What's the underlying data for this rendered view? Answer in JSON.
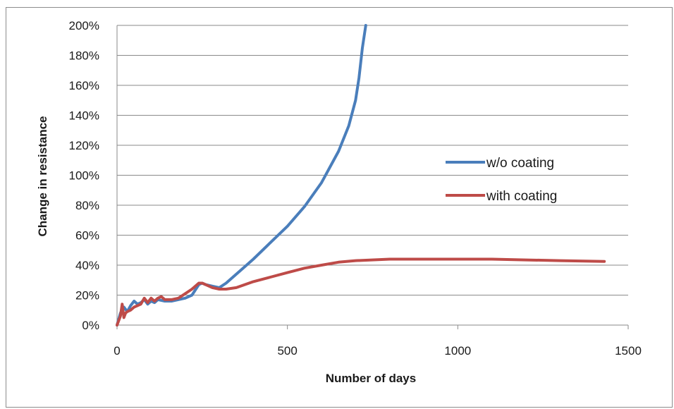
{
  "chart_data": {
    "type": "line",
    "title": "",
    "xlabel": "Number of days",
    "ylabel": "Change in resistance",
    "xlim": [
      0,
      1500
    ],
    "ylim": [
      0,
      200
    ],
    "x_ticks": [
      "0",
      "500",
      "1000",
      "1500"
    ],
    "y_ticks": [
      "0%",
      "20%",
      "40%",
      "60%",
      "80%",
      "100%",
      "120%",
      "140%",
      "160%",
      "180%",
      "200%"
    ],
    "grid": "horizontal",
    "legend_position": "right",
    "series": [
      {
        "name": "w/o coating",
        "color": "#4a7ebb",
        "points": [
          [
            0,
            0
          ],
          [
            10,
            8
          ],
          [
            20,
            12
          ],
          [
            30,
            9
          ],
          [
            40,
            13
          ],
          [
            50,
            16
          ],
          [
            60,
            14
          ],
          [
            70,
            15
          ],
          [
            80,
            17
          ],
          [
            90,
            14
          ],
          [
            100,
            16
          ],
          [
            110,
            15
          ],
          [
            120,
            17
          ],
          [
            140,
            16
          ],
          [
            160,
            16
          ],
          [
            180,
            17
          ],
          [
            200,
            18
          ],
          [
            220,
            20
          ],
          [
            240,
            27
          ],
          [
            250,
            28
          ],
          [
            260,
            27
          ],
          [
            280,
            26
          ],
          [
            300,
            25
          ],
          [
            320,
            28
          ],
          [
            350,
            34
          ],
          [
            400,
            44
          ],
          [
            450,
            55
          ],
          [
            500,
            66
          ],
          [
            550,
            79
          ],
          [
            600,
            95
          ],
          [
            650,
            116
          ],
          [
            680,
            133
          ],
          [
            700,
            150
          ],
          [
            710,
            165
          ],
          [
            720,
            185
          ],
          [
            730,
            200
          ]
        ]
      },
      {
        "name": "with coating",
        "color": "#be4b48",
        "points": [
          [
            0,
            0
          ],
          [
            10,
            6
          ],
          [
            15,
            14
          ],
          [
            20,
            5
          ],
          [
            25,
            8
          ],
          [
            30,
            9
          ],
          [
            40,
            10
          ],
          [
            50,
            12
          ],
          [
            60,
            13
          ],
          [
            70,
            14
          ],
          [
            80,
            18
          ],
          [
            90,
            15
          ],
          [
            100,
            18
          ],
          [
            110,
            16
          ],
          [
            120,
            18
          ],
          [
            130,
            19
          ],
          [
            140,
            17
          ],
          [
            160,
            17
          ],
          [
            180,
            18
          ],
          [
            200,
            21
          ],
          [
            220,
            24
          ],
          [
            240,
            28
          ],
          [
            250,
            28
          ],
          [
            260,
            27
          ],
          [
            280,
            25
          ],
          [
            300,
            24
          ],
          [
            320,
            24
          ],
          [
            350,
            25
          ],
          [
            400,
            29
          ],
          [
            450,
            32
          ],
          [
            500,
            35
          ],
          [
            550,
            38
          ],
          [
            600,
            40
          ],
          [
            650,
            42
          ],
          [
            700,
            43
          ],
          [
            800,
            44
          ],
          [
            900,
            44
          ],
          [
            1000,
            44
          ],
          [
            1100,
            44
          ],
          [
            1200,
            43.5
          ],
          [
            1300,
            43
          ],
          [
            1430,
            42.5
          ]
        ]
      }
    ]
  }
}
